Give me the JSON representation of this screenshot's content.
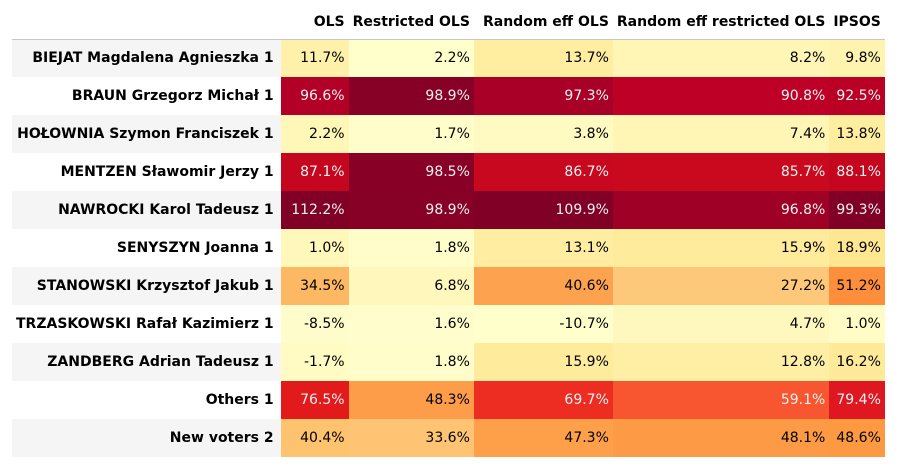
{
  "chart_data": {
    "type": "table",
    "columns": [
      "OLS",
      "Restricted OLS",
      "Random eff OLS",
      "Random eff restricted OLS",
      "IPSOS"
    ],
    "rows": [
      {
        "label": "BIEJAT Magdalena Agnieszka 1",
        "values": [
          "11.7%",
          "2.2%",
          "13.7%",
          "8.2%",
          "9.8%"
        ],
        "colors": [
          "#fff1aa",
          "#ffffcc",
          "#ffeda0",
          "#fff5b5",
          "#fff3b0"
        ]
      },
      {
        "label": "BRAUN Grzegorz Michał 1",
        "values": [
          "96.6%",
          "98.9%",
          "97.3%",
          "90.8%",
          "92.5%"
        ],
        "colors": [
          "#b30026",
          "#870026",
          "#a80026",
          "#be0026",
          "#bb0026"
        ]
      },
      {
        "label": "HOŁOWNIA Szymon Franciszek 1",
        "values": [
          "2.2%",
          "1.7%",
          "3.8%",
          "7.4%",
          "13.8%"
        ],
        "colors": [
          "#fff7b8",
          "#fffdca",
          "#fffac2",
          "#fff6b6",
          "#ffeda0"
        ]
      },
      {
        "label": "MENTZEN Sławomir Jerzy 1",
        "values": [
          "87.1%",
          "98.5%",
          "86.7%",
          "85.7%",
          "88.1%"
        ],
        "colors": [
          "#c5061f",
          "#880026",
          "#c8081e",
          "#c9091d",
          "#c4061f"
        ]
      },
      {
        "label": "NAWROCKI Karol Tadeusz 1",
        "values": [
          "112.2%",
          "98.9%",
          "109.9%",
          "96.8%",
          "99.3%"
        ],
        "colors": [
          "#800026",
          "#870026",
          "#800026",
          "#9f0026",
          "#800026"
        ]
      },
      {
        "label": "SENYSZYN Joanna 1",
        "values": [
          "1.0%",
          "1.8%",
          "13.1%",
          "15.9%",
          "18.9%"
        ],
        "colors": [
          "#fff8ba",
          "#fffdca",
          "#ffeea2",
          "#ffeb9c",
          "#ffe691"
        ]
      },
      {
        "label": "STANOWSKI Krzysztof Jakub 1",
        "values": [
          "34.5%",
          "6.8%",
          "40.6%",
          "27.2%",
          "51.2%"
        ],
        "colors": [
          "#fdb863",
          "#fff7bb",
          "#fda24f",
          "#fec87a",
          "#fd8e3c"
        ]
      },
      {
        "label": "TRZASKOWSKI Rafał Kazimierz 1",
        "values": [
          "-8.5%",
          "1.6%",
          "-10.7%",
          "4.7%",
          "1.0%"
        ],
        "colors": [
          "#fffccb",
          "#fffdcb",
          "#ffffcc",
          "#fff8be",
          "#fffcc5"
        ]
      },
      {
        "label": "ZANDBERG Adrian Tadeusz 1",
        "values": [
          "-1.7%",
          "1.8%",
          "15.9%",
          "12.8%",
          "16.2%"
        ],
        "colors": [
          "#fffbc2",
          "#fffdca",
          "#ffeb9c",
          "#ffefa5",
          "#ffea99"
        ]
      },
      {
        "label": "Others 1",
        "values": [
          "76.5%",
          "48.3%",
          "69.7%",
          "59.1%",
          "79.4%"
        ],
        "colors": [
          "#e31a1c",
          "#fd9c49",
          "#ed2d21",
          "#f85630",
          "#df1720"
        ]
      },
      {
        "label": "New voters 2",
        "values": [
          "40.4%",
          "33.6%",
          "47.3%",
          "48.1%",
          "48.6%"
        ],
        "colors": [
          "#fec36f",
          "#fec474",
          "#fda049",
          "#fd9a46",
          "#fd9940"
        ]
      }
    ]
  }
}
